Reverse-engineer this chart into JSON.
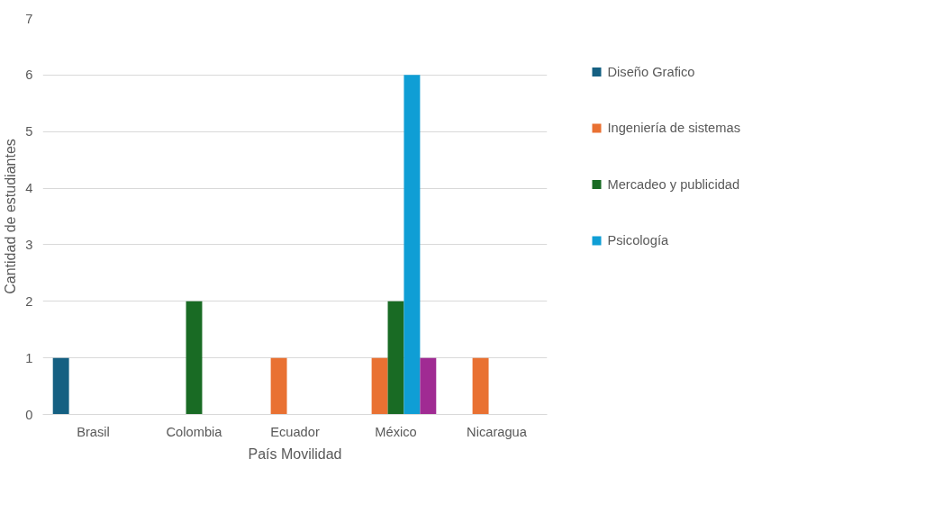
{
  "chart_data": {
    "type": "bar",
    "xlabel": "País Movilidad",
    "ylabel": "Cantidad de estudiantes",
    "categories": [
      "Brasil",
      "Colombia",
      "Ecuador",
      "México",
      "Nicaragua"
    ],
    "series": [
      {
        "name": "Diseño Grafico",
        "color": "#156082",
        "values": [
          1,
          0,
          0,
          0,
          0
        ]
      },
      {
        "name": "Ingeniería de sistemas",
        "color": "#e97132",
        "values": [
          0,
          0,
          1,
          1,
          1
        ]
      },
      {
        "name": "Mercadeo y publicidad",
        "color": "#196b24",
        "values": [
          0,
          2,
          0,
          2,
          0
        ]
      },
      {
        "name": "Psicología",
        "color": "#0f9ed5",
        "values": [
          0,
          0,
          0,
          6,
          0
        ]
      },
      {
        "color": "#a02b93",
        "values": [
          0,
          0,
          0,
          1,
          0
        ]
      }
    ],
    "ylim": [
      0,
      7
    ],
    "yticks": [
      0,
      1,
      2,
      3,
      4,
      5,
      6,
      7
    ],
    "grid": "y",
    "legend": "right"
  }
}
